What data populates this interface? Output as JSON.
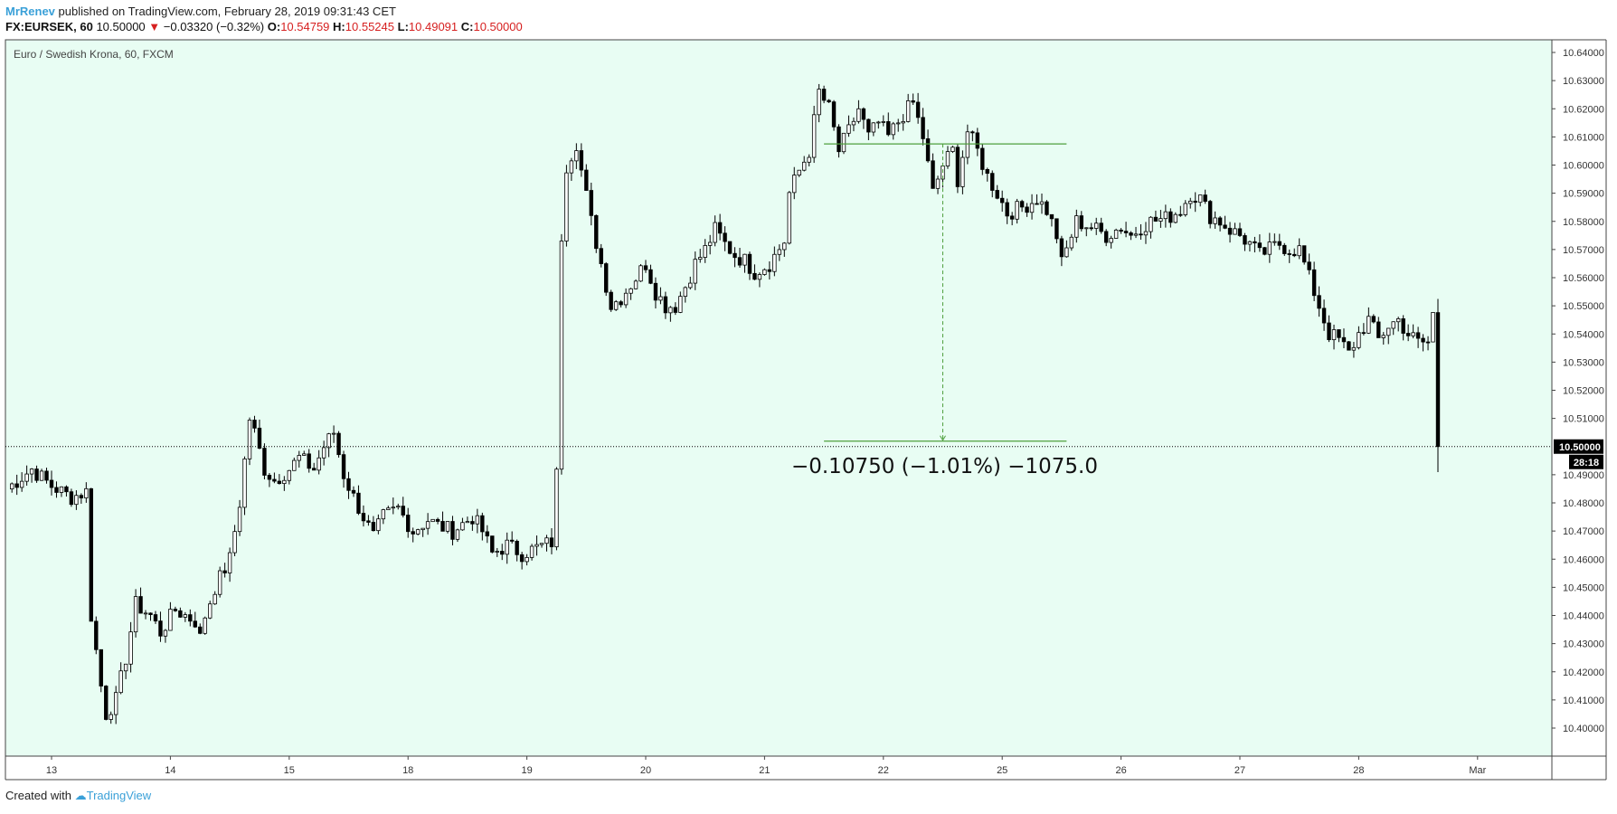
{
  "header": {
    "author": "MrRenev",
    "published_text": "published on TradingView.com, February 28, 2019 09:31:43 CET",
    "symbol": "FX:EURSEK, 60",
    "last": "10.50000",
    "change": "−0.03320 (−0.32%)",
    "o_label": "O:",
    "o_val": "10.54759",
    "h_label": "H:",
    "h_val": "10.55245",
    "l_label": "L:",
    "l_val": "10.49091",
    "c_label": "C:",
    "c_val": "10.50000"
  },
  "footer": {
    "created_with": "Created with",
    "brand": "TradingView"
  },
  "colors": {
    "background": "#e8fdf3",
    "measure": "#4e9f3d",
    "candle": "#000000",
    "price_label_bg": "#000000"
  },
  "chart_data": {
    "type": "candlestick",
    "title": "Euro / Swedish Krona, 60, FXCM",
    "y_ticks": [
      10.4,
      10.41,
      10.42,
      10.43,
      10.44,
      10.45,
      10.46,
      10.47,
      10.48,
      10.49,
      10.51,
      10.52,
      10.53,
      10.54,
      10.55,
      10.56,
      10.57,
      10.58,
      10.59,
      10.6,
      10.61,
      10.62,
      10.63,
      10.64
    ],
    "ylim": [
      10.393,
      10.645
    ],
    "x_ticks": [
      {
        "label": "13",
        "index": 0
      },
      {
        "label": "14",
        "index": 24
      },
      {
        "label": "15",
        "index": 48
      },
      {
        "label": "18",
        "index": 72
      },
      {
        "label": "19",
        "index": 96
      },
      {
        "label": "20",
        "index": 120
      },
      {
        "label": "21",
        "index": 144
      },
      {
        "label": "22",
        "index": 168
      },
      {
        "label": "25",
        "index": 192
      },
      {
        "label": "26",
        "index": 216
      },
      {
        "label": "27",
        "index": 240
      },
      {
        "label": "28",
        "index": 264
      },
      {
        "label": "Mar",
        "index": 288
      }
    ],
    "x_start_index": -9.5,
    "x_end_index": 303,
    "current_price": {
      "value": 10.5,
      "label": "10.50000",
      "countdown": "28:18"
    },
    "measurement": {
      "from_price": 10.6075,
      "to_price": 10.5,
      "x_from_index": 156,
      "x_to_index": 205,
      "x_arrow_index": 180,
      "label": "−0.10750 (−1.01%) −1075.0"
    },
    "anchors": [
      [
        -9,
        10.485
      ],
      [
        -4,
        10.492
      ],
      [
        0,
        10.486
      ],
      [
        4,
        10.482
      ],
      [
        7,
        10.484
      ],
      [
        8,
        10.44
      ],
      [
        10,
        10.415
      ],
      [
        11,
        10.405
      ],
      [
        13,
        10.41
      ],
      [
        15,
        10.425
      ],
      [
        17,
        10.444
      ],
      [
        20,
        10.44
      ],
      [
        22,
        10.434
      ],
      [
        25,
        10.442
      ],
      [
        29,
        10.438
      ],
      [
        30,
        10.432
      ],
      [
        31,
        10.44
      ],
      [
        33,
        10.45
      ],
      [
        36,
        10.46
      ],
      [
        38,
        10.48
      ],
      [
        40,
        10.51
      ],
      [
        41,
        10.505
      ],
      [
        43,
        10.492
      ],
      [
        45,
        10.488
      ],
      [
        48,
        10.492
      ],
      [
        50,
        10.496
      ],
      [
        53,
        10.492
      ],
      [
        55,
        10.5
      ],
      [
        57,
        10.505
      ],
      [
        59,
        10.49
      ],
      [
        61,
        10.482
      ],
      [
        63,
        10.475
      ],
      [
        65,
        10.468
      ],
      [
        67,
        10.475
      ],
      [
        70,
        10.478
      ],
      [
        73,
        10.47
      ],
      [
        76,
        10.474
      ],
      [
        78,
        10.472
      ],
      [
        81,
        10.47
      ],
      [
        85,
        10.475
      ],
      [
        87,
        10.47
      ],
      [
        89,
        10.462
      ],
      [
        92,
        10.465
      ],
      [
        95,
        10.462
      ],
      [
        98,
        10.464
      ],
      [
        101,
        10.466
      ],
      [
        102,
        10.49
      ],
      [
        103,
        10.575
      ],
      [
        104,
        10.6
      ],
      [
        106,
        10.608
      ],
      [
        107,
        10.598
      ],
      [
        109,
        10.58
      ],
      [
        111,
        10.565
      ],
      [
        113,
        10.55
      ],
      [
        115,
        10.553
      ],
      [
        118,
        10.56
      ],
      [
        120,
        10.565
      ],
      [
        122,
        10.555
      ],
      [
        124,
        10.55
      ],
      [
        126,
        10.55
      ],
      [
        128,
        10.557
      ],
      [
        130,
        10.565
      ],
      [
        132,
        10.57
      ],
      [
        134,
        10.577
      ],
      [
        136,
        10.572
      ],
      [
        138,
        10.568
      ],
      [
        140,
        10.566
      ],
      [
        142,
        10.562
      ],
      [
        145,
        10.565
      ],
      [
        148,
        10.573
      ],
      [
        149,
        10.59
      ],
      [
        151,
        10.598
      ],
      [
        153,
        10.605
      ],
      [
        155,
        10.626
      ],
      [
        157,
        10.62
      ],
      [
        159,
        10.605
      ],
      [
        161,
        10.612
      ],
      [
        163,
        10.62
      ],
      [
        165,
        10.61
      ],
      [
        167,
        10.615
      ],
      [
        169,
        10.61
      ],
      [
        172,
        10.618
      ],
      [
        174,
        10.622
      ],
      [
        176,
        10.61
      ],
      [
        178,
        10.59
      ],
      [
        180,
        10.6
      ],
      [
        182,
        10.605
      ],
      [
        183,
        10.595
      ],
      [
        185,
        10.612
      ],
      [
        187,
        10.605
      ],
      [
        189,
        10.596
      ],
      [
        191,
        10.59
      ],
      [
        193,
        10.583
      ],
      [
        196,
        10.585
      ],
      [
        199,
        10.588
      ],
      [
        201,
        10.584
      ],
      [
        203,
        10.575
      ],
      [
        204,
        10.565
      ],
      [
        205,
        10.57
      ],
      [
        207,
        10.58
      ],
      [
        210,
        10.578
      ],
      [
        213,
        10.575
      ],
      [
        216,
        10.578
      ],
      [
        218,
        10.575
      ],
      [
        220,
        10.578
      ],
      [
        222,
        10.58
      ],
      [
        225,
        10.581
      ],
      [
        228,
        10.584
      ],
      [
        230,
        10.59
      ],
      [
        232,
        10.588
      ],
      [
        234,
        10.582
      ],
      [
        236,
        10.58
      ],
      [
        238,
        10.577
      ],
      [
        240,
        10.575
      ],
      [
        242,
        10.572
      ],
      [
        244,
        10.568
      ],
      [
        246,
        10.57
      ],
      [
        248,
        10.572
      ],
      [
        250,
        10.57
      ],
      [
        252,
        10.57
      ],
      [
        254,
        10.56
      ],
      [
        256,
        10.55
      ],
      [
        257,
        10.545
      ],
      [
        258,
        10.54
      ],
      [
        260,
        10.538
      ],
      [
        262,
        10.533
      ],
      [
        264,
        10.54
      ],
      [
        266,
        10.545
      ],
      [
        268,
        10.538
      ],
      [
        270,
        10.543
      ],
      [
        272,
        10.545
      ],
      [
        274,
        10.54
      ],
      [
        276,
        10.537
      ],
      [
        278,
        10.537
      ],
      [
        279,
        10.547
      ],
      [
        280,
        10.5
      ]
    ],
    "last_candle": {
      "open": 10.54759,
      "high": 10.55245,
      "low": 10.49091,
      "close": 10.5
    }
  }
}
